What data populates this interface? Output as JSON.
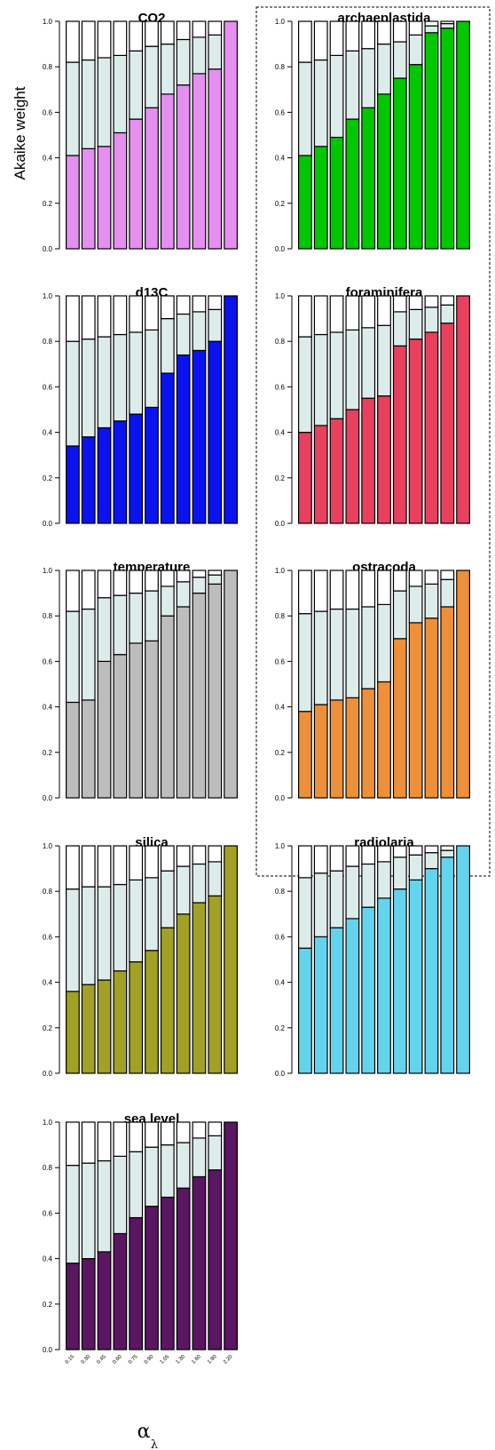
{
  "figure": {
    "ylabel": "Akaike weight",
    "xlabel": "α",
    "xlabel_sub": "λ"
  },
  "chart_data": [
    {
      "type": "bar",
      "title": "CO2",
      "color": "#e58ff0",
      "categories": [
        "0.15",
        "0.30",
        "0.45",
        "0.60",
        "0.75",
        "0.90",
        "1.05",
        "1.30",
        "1.60",
        "1.90",
        "2.20"
      ],
      "ylim": [
        0,
        1
      ],
      "yticks": [
        "0.0",
        "0.2",
        "0.4",
        "0.6",
        "0.8",
        "1.0"
      ],
      "stacked": true,
      "series": [
        {
          "values": [
            0.41,
            0.44,
            0.45,
            0.51,
            0.57,
            0.62,
            0.68,
            0.72,
            0.77,
            0.79,
            1.0
          ]
        },
        {
          "values": [
            0.41,
            0.39,
            0.39,
            0.34,
            0.3,
            0.27,
            0.22,
            0.2,
            0.16,
            0.15,
            0.0
          ]
        },
        {
          "values": [
            0.18,
            0.17,
            0.16,
            0.15,
            0.13,
            0.11,
            0.1,
            0.08,
            0.07,
            0.06,
            0.0
          ]
        }
      ]
    },
    {
      "type": "bar",
      "title": "archaeplastida",
      "color": "#00c800",
      "categories": [
        "0.15",
        "0.30",
        "0.45",
        "0.60",
        "0.75",
        "0.90",
        "1.05",
        "1.30",
        "1.60",
        "1.90",
        "2.20"
      ],
      "ylim": [
        0,
        1
      ],
      "yticks": [
        "0.0",
        "0.2",
        "0.4",
        "0.6",
        "0.8",
        "1.0"
      ],
      "stacked": true,
      "series": [
        {
          "values": [
            0.41,
            0.45,
            0.49,
            0.57,
            0.62,
            0.68,
            0.75,
            0.81,
            0.95,
            0.97,
            1.0
          ]
        },
        {
          "values": [
            0.41,
            0.38,
            0.36,
            0.3,
            0.26,
            0.22,
            0.16,
            0.13,
            0.03,
            0.02,
            0.0
          ]
        },
        {
          "values": [
            0.18,
            0.17,
            0.15,
            0.13,
            0.12,
            0.1,
            0.09,
            0.06,
            0.02,
            0.01,
            0.0
          ]
        }
      ]
    },
    {
      "type": "bar",
      "title": "d13C",
      "color": "#0a12f0",
      "categories": [
        "0.15",
        "0.30",
        "0.45",
        "0.60",
        "0.75",
        "0.90",
        "1.05",
        "1.30",
        "1.60",
        "1.90",
        "2.20"
      ],
      "ylim": [
        0,
        1
      ],
      "yticks": [
        "0.0",
        "0.2",
        "0.4",
        "0.6",
        "0.8",
        "1.0"
      ],
      "stacked": true,
      "series": [
        {
          "values": [
            0.34,
            0.38,
            0.42,
            0.45,
            0.48,
            0.51,
            0.66,
            0.74,
            0.76,
            0.8,
            1.0
          ]
        },
        {
          "values": [
            0.46,
            0.43,
            0.4,
            0.38,
            0.36,
            0.34,
            0.24,
            0.18,
            0.17,
            0.14,
            0.0
          ]
        },
        {
          "values": [
            0.2,
            0.19,
            0.18,
            0.17,
            0.16,
            0.15,
            0.1,
            0.08,
            0.07,
            0.06,
            0.0
          ]
        }
      ]
    },
    {
      "type": "bar",
      "title": "foraminifera",
      "color": "#e8405e",
      "categories": [
        "0.15",
        "0.30",
        "0.45",
        "0.60",
        "0.75",
        "0.90",
        "1.05",
        "1.30",
        "1.60",
        "1.90",
        "2.20"
      ],
      "ylim": [
        0,
        1
      ],
      "yticks": [
        "0.0",
        "0.2",
        "0.4",
        "0.6",
        "0.8",
        "1.0"
      ],
      "stacked": true,
      "series": [
        {
          "values": [
            0.4,
            0.43,
            0.46,
            0.5,
            0.55,
            0.56,
            0.78,
            0.81,
            0.84,
            0.88,
            1.0
          ]
        },
        {
          "values": [
            0.42,
            0.4,
            0.38,
            0.35,
            0.31,
            0.31,
            0.15,
            0.13,
            0.11,
            0.08,
            0.0
          ]
        },
        {
          "values": [
            0.18,
            0.17,
            0.16,
            0.15,
            0.14,
            0.13,
            0.07,
            0.06,
            0.05,
            0.04,
            0.0
          ]
        }
      ]
    },
    {
      "type": "bar",
      "title": "temperature",
      "color": "#bdbdbd",
      "categories": [
        "0.15",
        "0.30",
        "0.45",
        "0.60",
        "0.75",
        "0.90",
        "1.05",
        "1.30",
        "1.60",
        "1.90",
        "2.20"
      ],
      "ylim": [
        0,
        1
      ],
      "yticks": [
        "0.0",
        "0.2",
        "0.4",
        "0.6",
        "0.8",
        "1.0"
      ],
      "stacked": true,
      "series": [
        {
          "values": [
            0.42,
            0.43,
            0.6,
            0.63,
            0.68,
            0.69,
            0.8,
            0.84,
            0.9,
            0.94,
            1.0
          ]
        },
        {
          "values": [
            0.4,
            0.4,
            0.28,
            0.26,
            0.22,
            0.22,
            0.13,
            0.11,
            0.07,
            0.04,
            0.0
          ]
        },
        {
          "values": [
            0.18,
            0.17,
            0.12,
            0.11,
            0.1,
            0.09,
            0.07,
            0.05,
            0.03,
            0.02,
            0.0
          ]
        }
      ]
    },
    {
      "type": "bar",
      "title": "ostracoda",
      "color": "#ee8f39",
      "categories": [
        "0.15",
        "0.30",
        "0.45",
        "0.60",
        "0.75",
        "0.90",
        "1.05",
        "1.30",
        "1.60",
        "1.90",
        "2.20"
      ],
      "ylim": [
        0,
        1
      ],
      "yticks": [
        "0.0",
        "0.2",
        "0.4",
        "0.6",
        "0.8",
        "1.0"
      ],
      "stacked": true,
      "series": [
        {
          "values": [
            0.38,
            0.41,
            0.43,
            0.44,
            0.48,
            0.51,
            0.7,
            0.77,
            0.79,
            0.84,
            1.0
          ]
        },
        {
          "values": [
            0.43,
            0.41,
            0.4,
            0.39,
            0.36,
            0.34,
            0.21,
            0.16,
            0.15,
            0.12,
            0.0
          ]
        },
        {
          "values": [
            0.19,
            0.18,
            0.17,
            0.17,
            0.16,
            0.15,
            0.09,
            0.07,
            0.06,
            0.04,
            0.0
          ]
        }
      ]
    },
    {
      "type": "bar",
      "title": "silica",
      "color": "#a2a025",
      "categories": [
        "0.15",
        "0.30",
        "0.45",
        "0.60",
        "0.75",
        "0.90",
        "1.05",
        "1.30",
        "1.60",
        "1.90",
        "2.20"
      ],
      "ylim": [
        0,
        1
      ],
      "yticks": [
        "0.0",
        "0.2",
        "0.4",
        "0.6",
        "0.8",
        "1.0"
      ],
      "stacked": true,
      "series": [
        {
          "values": [
            0.36,
            0.39,
            0.41,
            0.45,
            0.49,
            0.54,
            0.64,
            0.7,
            0.75,
            0.78,
            1.0
          ]
        },
        {
          "values": [
            0.45,
            0.43,
            0.41,
            0.38,
            0.36,
            0.32,
            0.25,
            0.21,
            0.17,
            0.15,
            0.0
          ]
        },
        {
          "values": [
            0.19,
            0.18,
            0.18,
            0.17,
            0.15,
            0.14,
            0.11,
            0.09,
            0.08,
            0.07,
            0.0
          ]
        }
      ]
    },
    {
      "type": "bar",
      "title": "radiolaria",
      "color": "#63d4ee",
      "categories": [
        "0.15",
        "0.30",
        "0.45",
        "0.60",
        "0.75",
        "0.90",
        "1.05",
        "1.30",
        "1.60",
        "1.90",
        "2.20"
      ],
      "ylim": [
        0,
        1
      ],
      "yticks": [
        "0.0",
        "0.2",
        "0.4",
        "0.6",
        "0.8",
        "1.0"
      ],
      "stacked": true,
      "series": [
        {
          "values": [
            0.55,
            0.6,
            0.64,
            0.68,
            0.73,
            0.77,
            0.81,
            0.85,
            0.9,
            0.95,
            1.0
          ]
        },
        {
          "values": [
            0.31,
            0.28,
            0.25,
            0.23,
            0.19,
            0.16,
            0.14,
            0.11,
            0.07,
            0.03,
            0.0
          ]
        },
        {
          "values": [
            0.14,
            0.12,
            0.11,
            0.09,
            0.08,
            0.07,
            0.05,
            0.04,
            0.03,
            0.02,
            0.0
          ]
        }
      ]
    },
    {
      "type": "bar",
      "title": "sea level",
      "color": "#5a1660",
      "categories": [
        "0.15",
        "0.30",
        "0.45",
        "0.60",
        "0.75",
        "0.90",
        "1.05",
        "1.30",
        "1.60",
        "1.90",
        "2.20"
      ],
      "ylim": [
        0,
        1
      ],
      "yticks": [
        "0.0",
        "0.2",
        "0.4",
        "0.6",
        "0.8",
        "1.0"
      ],
      "stacked": true,
      "series": [
        {
          "values": [
            0.38,
            0.4,
            0.43,
            0.51,
            0.58,
            0.63,
            0.67,
            0.71,
            0.76,
            0.79,
            1.0
          ]
        },
        {
          "values": [
            0.43,
            0.42,
            0.4,
            0.34,
            0.29,
            0.26,
            0.23,
            0.2,
            0.17,
            0.15,
            0.0
          ]
        },
        {
          "values": [
            0.19,
            0.18,
            0.17,
            0.15,
            0.13,
            0.11,
            0.1,
            0.09,
            0.07,
            0.06,
            0.0
          ]
        }
      ]
    }
  ]
}
